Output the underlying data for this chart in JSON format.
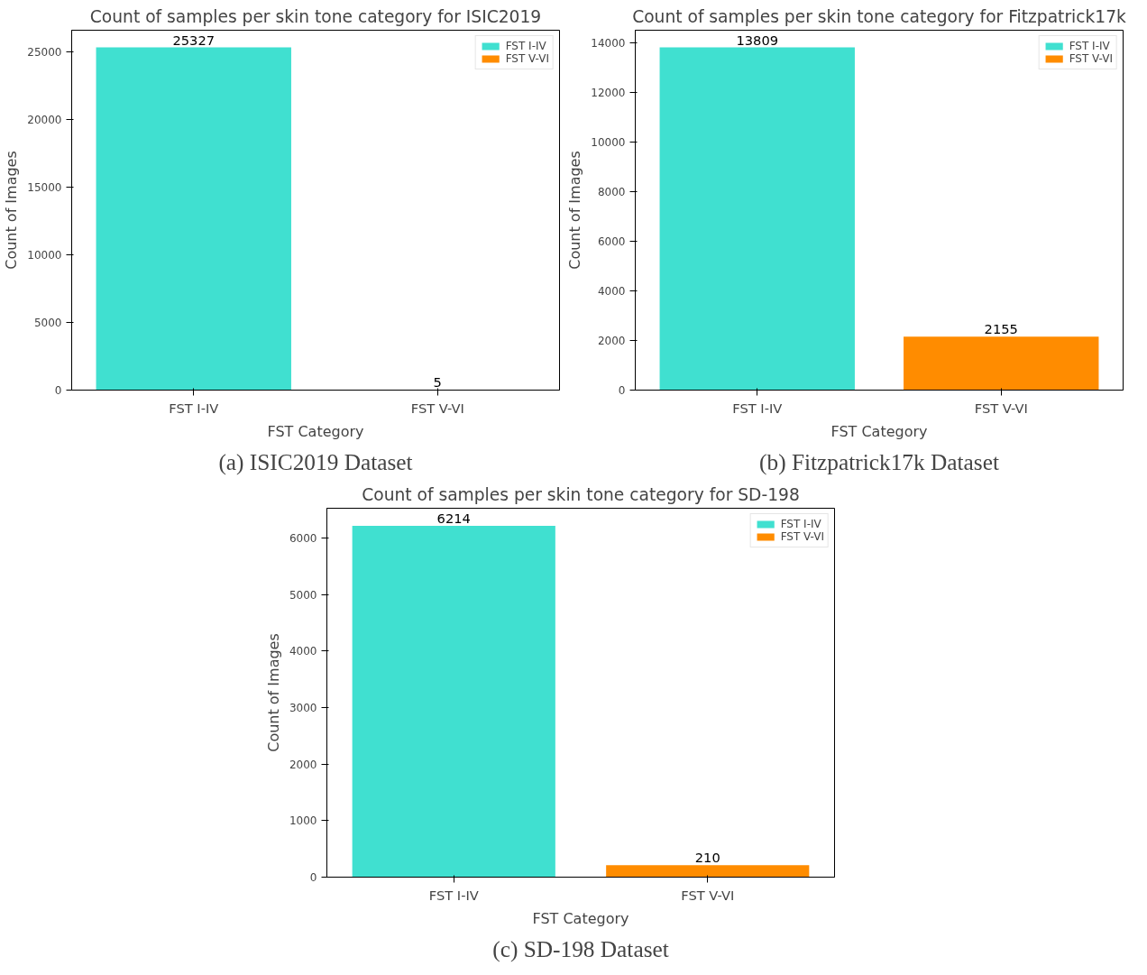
{
  "chart_data": [
    {
      "type": "bar",
      "title": "Count of samples per skin tone category for ISIC2019",
      "xlabel": "FST Category",
      "ylabel": "Count of Images",
      "categories": [
        "FST I-IV",
        "FST V-VI"
      ],
      "series": [
        {
          "name": "FST I-IV",
          "color": "#40e0d0",
          "values": [
            25327,
            null
          ]
        },
        {
          "name": "FST V-VI",
          "color": "#ff8c00",
          "values": [
            null,
            5
          ]
        }
      ],
      "ylim": [
        0,
        26600
      ],
      "yticks": [
        0,
        5000,
        10000,
        15000,
        20000,
        25000
      ],
      "data_labels": true,
      "legend": "top right",
      "grid": false,
      "annotations": [
        "(a) ISIC2019 Dataset"
      ]
    },
    {
      "type": "bar",
      "title": "Count of samples per skin tone category for Fitzpatrick17k",
      "xlabel": "FST Category",
      "ylabel": "Count of Images",
      "categories": [
        "FST I-IV",
        "FST V-VI"
      ],
      "series": [
        {
          "name": "FST I-IV",
          "color": "#40e0d0",
          "values": [
            13809,
            null
          ]
        },
        {
          "name": "FST V-VI",
          "color": "#ff8c00",
          "values": [
            null,
            2155
          ]
        }
      ],
      "ylim": [
        0,
        14500
      ],
      "yticks": [
        0,
        2000,
        4000,
        6000,
        8000,
        10000,
        12000,
        14000
      ],
      "data_labels": true,
      "legend": "top right",
      "grid": false,
      "annotations": [
        "(b) Fitzpatrick17k Dataset"
      ]
    },
    {
      "type": "bar",
      "title": "Count of samples per skin tone category for SD-198",
      "xlabel": "FST Category",
      "ylabel": "Count of Images",
      "categories": [
        "FST I-IV",
        "FST V-VI"
      ],
      "series": [
        {
          "name": "FST I-IV",
          "color": "#40e0d0",
          "values": [
            6214,
            null
          ]
        },
        {
          "name": "FST V-VI",
          "color": "#ff8c00",
          "values": [
            null,
            210
          ]
        }
      ],
      "ylim": [
        0,
        6525
      ],
      "yticks": [
        0,
        1000,
        2000,
        3000,
        4000,
        5000,
        6000
      ],
      "data_labels": true,
      "legend": "top right",
      "grid": false,
      "annotations": [
        "(c) SD-198 Dataset"
      ]
    }
  ]
}
